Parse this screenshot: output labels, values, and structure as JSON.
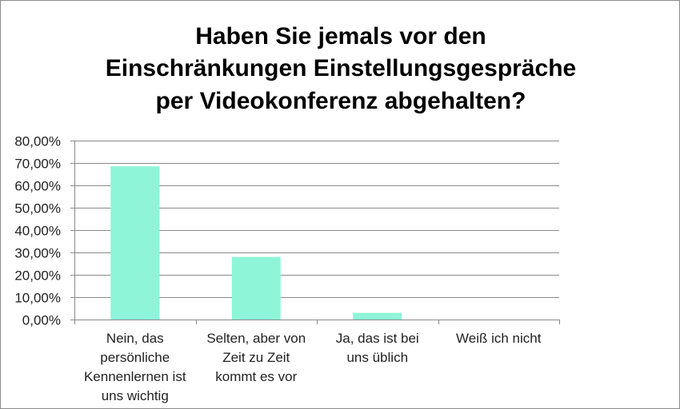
{
  "chart_data": {
    "type": "bar",
    "title_lines": [
      "Haben Sie jemals vor den",
      "Einschränkungen Einstellungsgespräche",
      "per Videokonferenz abgehalten?"
    ],
    "categories": [
      [
        "Nein, das",
        "persönliche",
        "Kennenlernen ist",
        "uns wichtig"
      ],
      [
        "Selten, aber von",
        "Zeit zu Zeit",
        "kommt es vor"
      ],
      [
        "Ja, das ist bei",
        "uns üblich"
      ],
      [
        "Weiß ich nicht"
      ]
    ],
    "values": [
      0.685,
      0.28,
      0.03,
      0.0
    ],
    "ylim": [
      0,
      0.8
    ],
    "yticks": [
      0,
      0.1,
      0.2,
      0.3,
      0.4,
      0.5,
      0.6,
      0.7,
      0.8
    ],
    "ytick_labels": [
      "0,00%",
      "10,00%",
      "20,00%",
      "30,00%",
      "40,00%",
      "50,00%",
      "60,00%",
      "70,00%",
      "80,00%"
    ],
    "bar_color": "#8ff5d8",
    "grid": true,
    "legend": "none"
  }
}
